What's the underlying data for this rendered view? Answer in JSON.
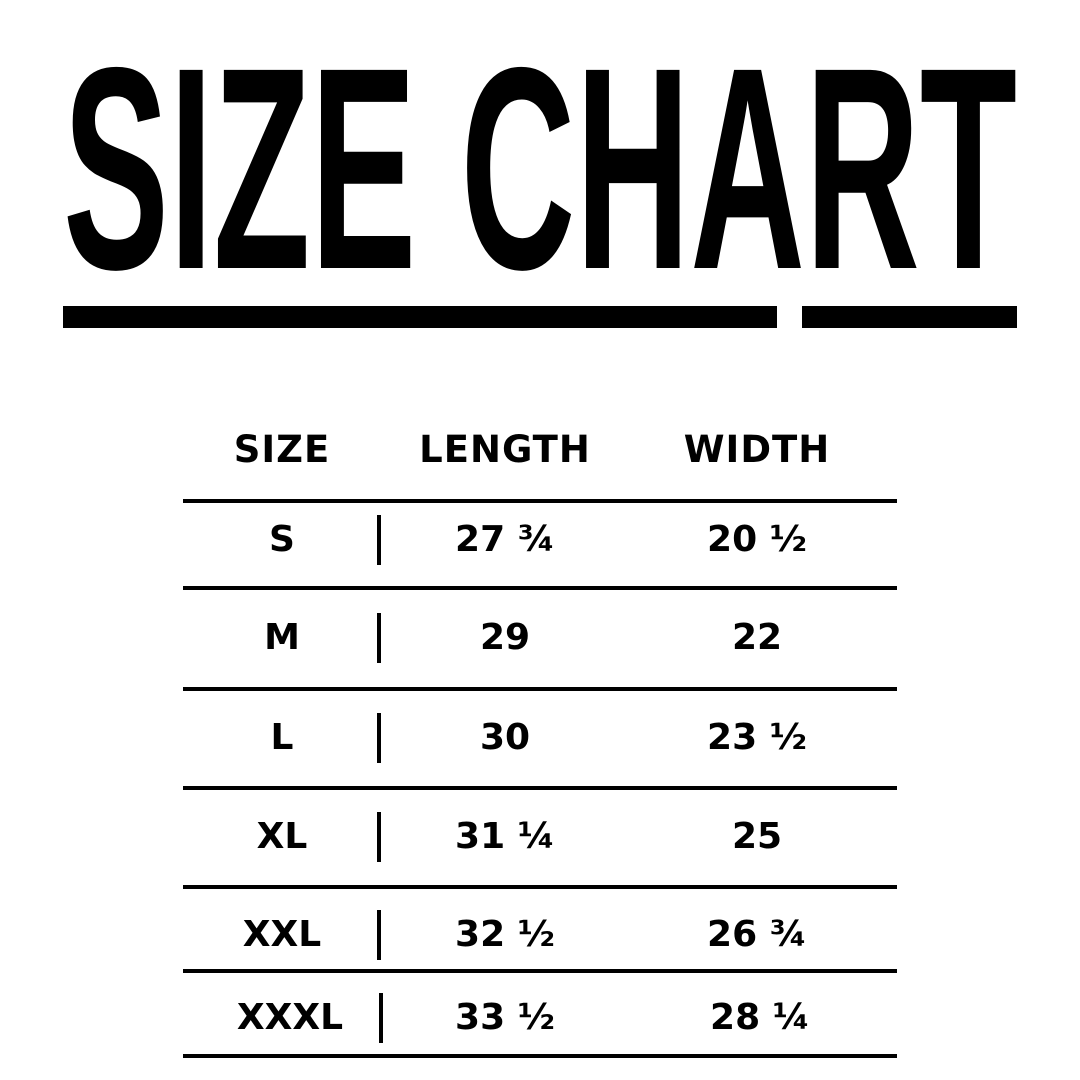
{
  "title": "SIZE CHART",
  "table": {
    "headers": [
      "SIZE",
      "LENGTH",
      "WIDTH"
    ],
    "rows": [
      {
        "size": "S",
        "length": "27 ¾",
        "width": "20 ½"
      },
      {
        "size": "M",
        "length": "29",
        "width": "22"
      },
      {
        "size": "L",
        "length": "30",
        "width": "23 ½"
      },
      {
        "size": "XL",
        "length": "31 ¼",
        "width": "25"
      },
      {
        "size": "XXL",
        "length": "32 ½",
        "width": "26 ¾"
      },
      {
        "size": "XXXL",
        "length": "33 ½",
        "width": "28 ¼"
      }
    ]
  }
}
